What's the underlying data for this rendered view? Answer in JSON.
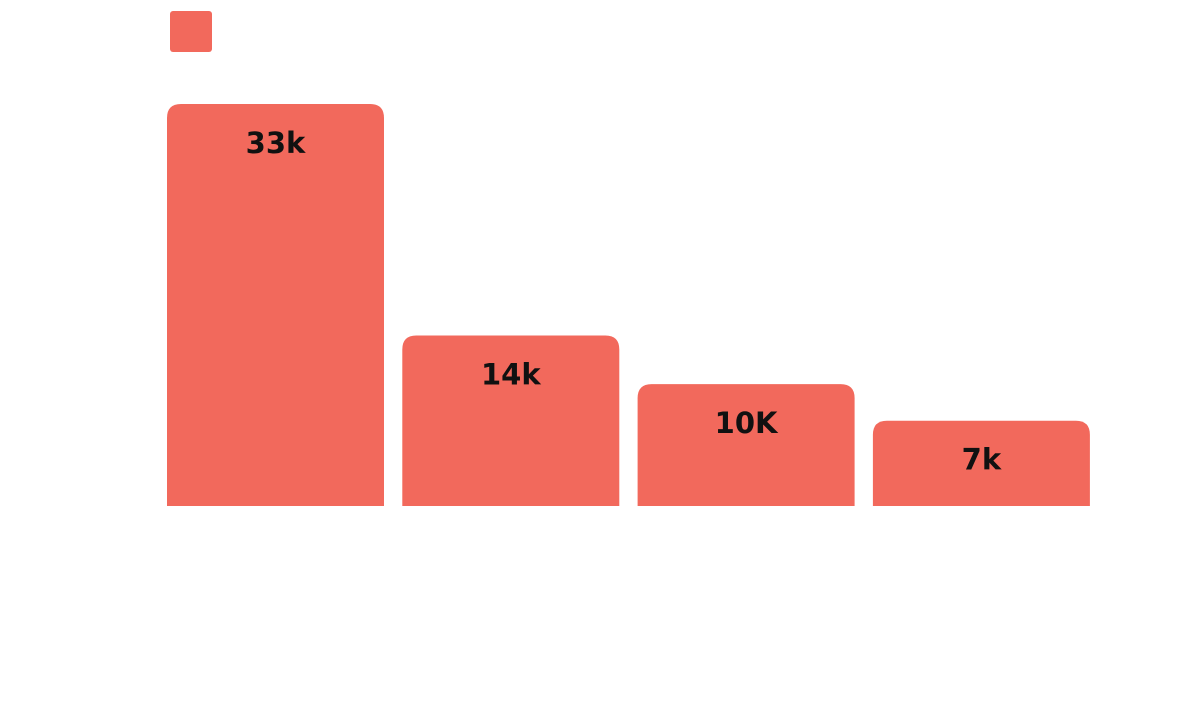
{
  "chart_data": {
    "type": "bar",
    "categories": [
      "",
      "",
      "",
      ""
    ],
    "values": [
      33000,
      14000,
      10000,
      7000
    ],
    "data_labels": [
      "33k",
      "14k",
      "10K",
      "7k"
    ],
    "title": "",
    "xlabel": "",
    "ylabel": "",
    "ylim": [
      0,
      33000
    ],
    "grid": false,
    "legend": {
      "position": "top-left",
      "entries": [
        {
          "name": "",
          "color": "#f2695c"
        }
      ]
    },
    "bar_color": "#f2695c"
  }
}
